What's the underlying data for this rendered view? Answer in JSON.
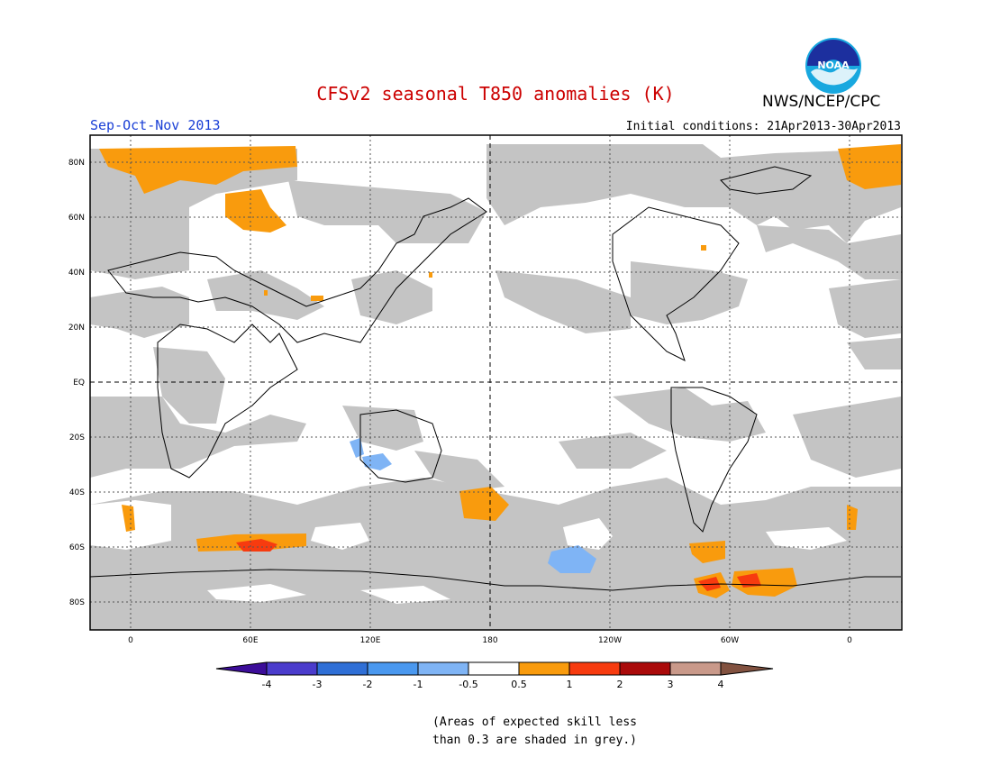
{
  "title": "CFSv2 seasonal T850 anomalies (K)",
  "agency": "NWS/NCEP/CPC",
  "logo_text": "NOAA",
  "season": "Sep-Oct-Nov 2013",
  "initial_conditions": "Initial conditions: 21Apr2013-30Apr2013",
  "lat_labels": [
    "80N",
    "60N",
    "40N",
    "20N",
    "EQ",
    "20S",
    "40S",
    "60S",
    "80S"
  ],
  "lon_labels": [
    "0",
    "60E",
    "120E",
    "180",
    "120W",
    "60W",
    "0"
  ],
  "legend": {
    "labels": [
      "-4",
      "-3",
      "-2",
      "-1",
      "-0.5",
      "0.5",
      "1",
      "2",
      "3",
      "4"
    ],
    "colors": [
      "#3c0d99",
      "#4b3ccc",
      "#2f6fd6",
      "#4a98ef",
      "#7fb4f5",
      "#ffffff",
      "#f99b0d",
      "#f73b0f",
      "#aa0a0a",
      "#c9998a",
      "#825240"
    ]
  },
  "skill_mask_color": "#c4c4c4",
  "footnote": [
    "(Areas of expected skill less",
    "than 0.3 are shaded in grey.)"
  ]
}
